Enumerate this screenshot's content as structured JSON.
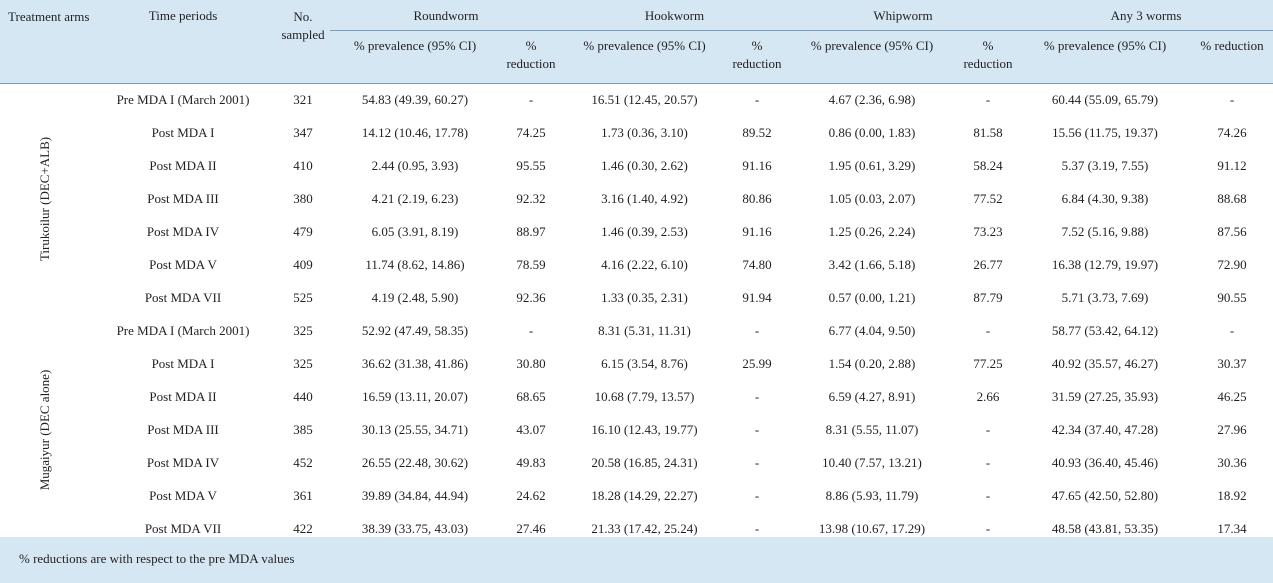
{
  "header": {
    "treatment_arms": "Treatment arms",
    "time_periods": "Time periods",
    "no_sampled": "No. sampled",
    "groups": [
      "Roundworm",
      "Hookworm",
      "Whipworm",
      "Any 3 worms"
    ],
    "prevalence": "% prevalence (95% CI)",
    "reduction": "% reduction"
  },
  "arms": [
    {
      "label": "Tirukoilur (DEC+ALB)",
      "rows": [
        {
          "period": "Pre MDA I (March 2001)",
          "n": "321",
          "v": [
            "54.83 (49.39, 60.27)",
            "-",
            "16.51 (12.45, 20.57)",
            "-",
            "4.67 (2.36, 6.98)",
            "-",
            "60.44 (55.09, 65.79)",
            "-"
          ]
        },
        {
          "period": "Post MDA I",
          "n": "347",
          "v": [
            "14.12 (10.46, 17.78)",
            "74.25",
            "1.73 (0.36, 3.10)",
            "89.52",
            "0.86 (0.00, 1.83)",
            "81.58",
            "15.56 (11.75, 19.37)",
            "74.26"
          ]
        },
        {
          "period": "Post MDA II",
          "n": "410",
          "v": [
            "2.44 (0.95, 3.93)",
            "95.55",
            "1.46 (0.30, 2.62)",
            "91.16",
            "1.95 (0.61, 3.29)",
            "58.24",
            "5.37 (3.19, 7.55)",
            "91.12"
          ]
        },
        {
          "period": "Post MDA III",
          "n": "380",
          "v": [
            "4.21 (2.19, 6.23)",
            "92.32",
            "3.16 (1.40, 4.92)",
            "80.86",
            "1.05 (0.03, 2.07)",
            "77.52",
            "6.84 (4.30, 9.38)",
            "88.68"
          ]
        },
        {
          "period": "Post MDA IV",
          "n": "479",
          "v": [
            "6.05 (3.91, 8.19)",
            "88.97",
            "1.46 (0.39, 2.53)",
            "91.16",
            "1.25 (0.26, 2.24)",
            "73.23",
            "7.52 (5.16, 9.88)",
            "87.56"
          ]
        },
        {
          "period": "Post MDA V",
          "n": "409",
          "v": [
            "11.74 (8.62, 14.86)",
            "78.59",
            "4.16 (2.22, 6.10)",
            "74.80",
            "3.42 (1.66, 5.18)",
            "26.77",
            "16.38 (12.79, 19.97)",
            "72.90"
          ]
        },
        {
          "period": "Post MDA VII",
          "n": "525",
          "v": [
            "4.19 (2.48, 5.90)",
            "92.36",
            "1.33 (0.35, 2.31)",
            "91.94",
            "0.57 (0.00, 1.21)",
            "87.79",
            "5.71 (3.73, 7.69)",
            "90.55"
          ]
        }
      ]
    },
    {
      "label": "Mugaiyur (DEC alone)",
      "rows": [
        {
          "period": "Pre MDA I  (March 2001)",
          "n": "325",
          "v": [
            "52.92 (47.49, 58.35)",
            "-",
            "8.31 (5.31, 11.31)",
            "-",
            "6.77 (4.04, 9.50)",
            "-",
            "58.77 (53.42, 64.12)",
            "-"
          ]
        },
        {
          "period": "Post MDA I",
          "n": "325",
          "v": [
            "36.62 (31.38, 41.86)",
            "30.80",
            "6.15 (3.54, 8.76)",
            "25.99",
            "1.54 (0.20, 2.88)",
            "77.25",
            "40.92 (35.57, 46.27)",
            "30.37"
          ]
        },
        {
          "period": "Post MDA II",
          "n": "440",
          "v": [
            "16.59 (13.11, 20.07)",
            "68.65",
            "10.68 (7.79, 13.57)",
            "-",
            "6.59 (4.27, 8.91)",
            "2.66",
            "31.59 (27.25, 35.93)",
            "46.25"
          ]
        },
        {
          "period": "Post MDA III",
          "n": "385",
          "v": [
            "30.13 (25.55, 34.71)",
            "43.07",
            "16.10 (12.43, 19.77)",
            "-",
            "8.31 (5.55, 11.07)",
            "-",
            "42.34 (37.40, 47.28)",
            "27.96"
          ]
        },
        {
          "period": "Post MDA IV",
          "n": "452",
          "v": [
            "26.55 (22.48, 30.62)",
            "49.83",
            "20.58 (16.85, 24.31)",
            "-",
            "10.40 (7.57, 13.21)",
            "-",
            "40.93 (36.40, 45.46)",
            "30.36"
          ]
        },
        {
          "period": "Post MDA V",
          "n": "361",
          "v": [
            "39.89 (34.84, 44.94)",
            "24.62",
            "18.28 (14.29, 22.27)",
            "-",
            "8.86 (5.93, 11.79)",
            "-",
            "47.65 (42.50, 52.80)",
            "18.92"
          ]
        },
        {
          "period": "Post MDA VII",
          "n": "422",
          "v": [
            "38.39 (33.75, 43.03)",
            "27.46",
            "21.33 (17.42, 25.24)",
            "-",
            "13.98 (10.67, 17.29)",
            "-",
            "48.58 (43.81, 53.35)",
            "17.34"
          ]
        }
      ]
    }
  ],
  "footnote": "% reductions are with respect to the pre MDA values"
}
